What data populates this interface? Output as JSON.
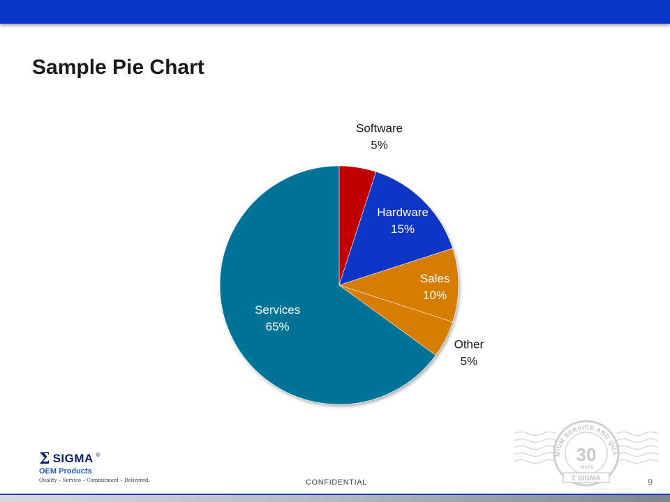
{
  "slide": {
    "title": "Sample Pie Chart",
    "confidential_label": "CONFIDENTIAL",
    "page_number": "9"
  },
  "logo": {
    "symbol": "Σ",
    "brand": "SIGMA",
    "registered": "®",
    "product_line": "OEM Products",
    "tagline": "Quality – Service – Commitment – Delivered."
  },
  "seal": {
    "ring_text": "PREMIUM SERVICE AND QUALITY",
    "number": "30",
    "years": "YEARS",
    "brand": "Σ SIGMA"
  },
  "colors": {
    "header_bar": "#0a35c6",
    "software": "#c00000",
    "hardware": "#0a35c6",
    "sales": "#d67b00",
    "other": "#d67b00",
    "services": "#007396"
  },
  "chart_data": {
    "type": "pie",
    "title": "",
    "start_angle_deg": 0,
    "direction": "clockwise",
    "slices": [
      {
        "name": "Software",
        "value": 5,
        "label": "5%",
        "color": "#c00000",
        "label_color": "#1a1a1a"
      },
      {
        "name": "Hardware",
        "value": 15,
        "label": "15%",
        "color": "#0a35c6",
        "label_color": "#ffffff"
      },
      {
        "name": "Sales",
        "value": 10,
        "label": "10%",
        "color": "#d67b00",
        "label_color": "#ffffff"
      },
      {
        "name": "Other",
        "value": 5,
        "label": "5%",
        "color": "#d67b00",
        "label_color": "#1a1a1a"
      },
      {
        "name": "Services",
        "value": 65,
        "label": "65%",
        "color": "#007396",
        "label_color": "#ffffff"
      }
    ]
  }
}
